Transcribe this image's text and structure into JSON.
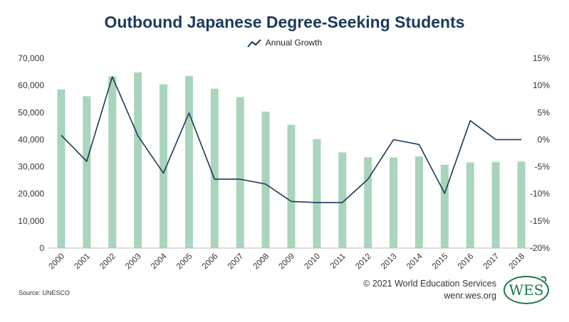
{
  "chart_data": {
    "type": "bar",
    "title": "Outbound Japanese Degree-Seeking Students",
    "categories": [
      "2000",
      "2001",
      "2002",
      "2003",
      "2004",
      "2005",
      "2006",
      "2007",
      "2008",
      "2009",
      "2010",
      "2011",
      "2012",
      "2013",
      "2014",
      "2015",
      "2016",
      "2017",
      "2018"
    ],
    "series": [
      {
        "type": "bar",
        "axis": "left",
        "color": "#a8d5bc",
        "values": [
          58500,
          56000,
          63300,
          64800,
          60400,
          63500,
          58800,
          55700,
          50300,
          45500,
          40200,
          35300,
          33500,
          33400,
          33800,
          30700,
          31600,
          31800,
          31900
        ]
      },
      {
        "name": "Annual Growth",
        "type": "line",
        "axis": "right",
        "color": "#1b3a55",
        "values": [
          0.8,
          -4.0,
          11.6,
          0.7,
          -6.2,
          4.9,
          -7.3,
          -7.3,
          -8.2,
          -11.4,
          -11.6,
          -11.6,
          -7.3,
          0.0,
          -0.9,
          -9.9,
          3.5,
          0.0,
          0.0
        ]
      }
    ],
    "left_axis": {
      "ylim": [
        0,
        70000
      ],
      "ticks": [
        "0",
        "10,000",
        "20,000",
        "30,000",
        "40,000",
        "50,000",
        "60,000",
        "70,000"
      ]
    },
    "right_axis": {
      "ylim": [
        -20,
        15
      ],
      "ticks": [
        "-20%",
        "-15%",
        "-10%",
        "-5%",
        "0%",
        "5%",
        "10%",
        "15%"
      ]
    },
    "grid": false,
    "legend": "top-center"
  },
  "footer": {
    "source": "Source: UNESCO",
    "copyright": "© 2021 World Education Services",
    "website": "wenr.wes.org",
    "logo_text": "WES"
  }
}
